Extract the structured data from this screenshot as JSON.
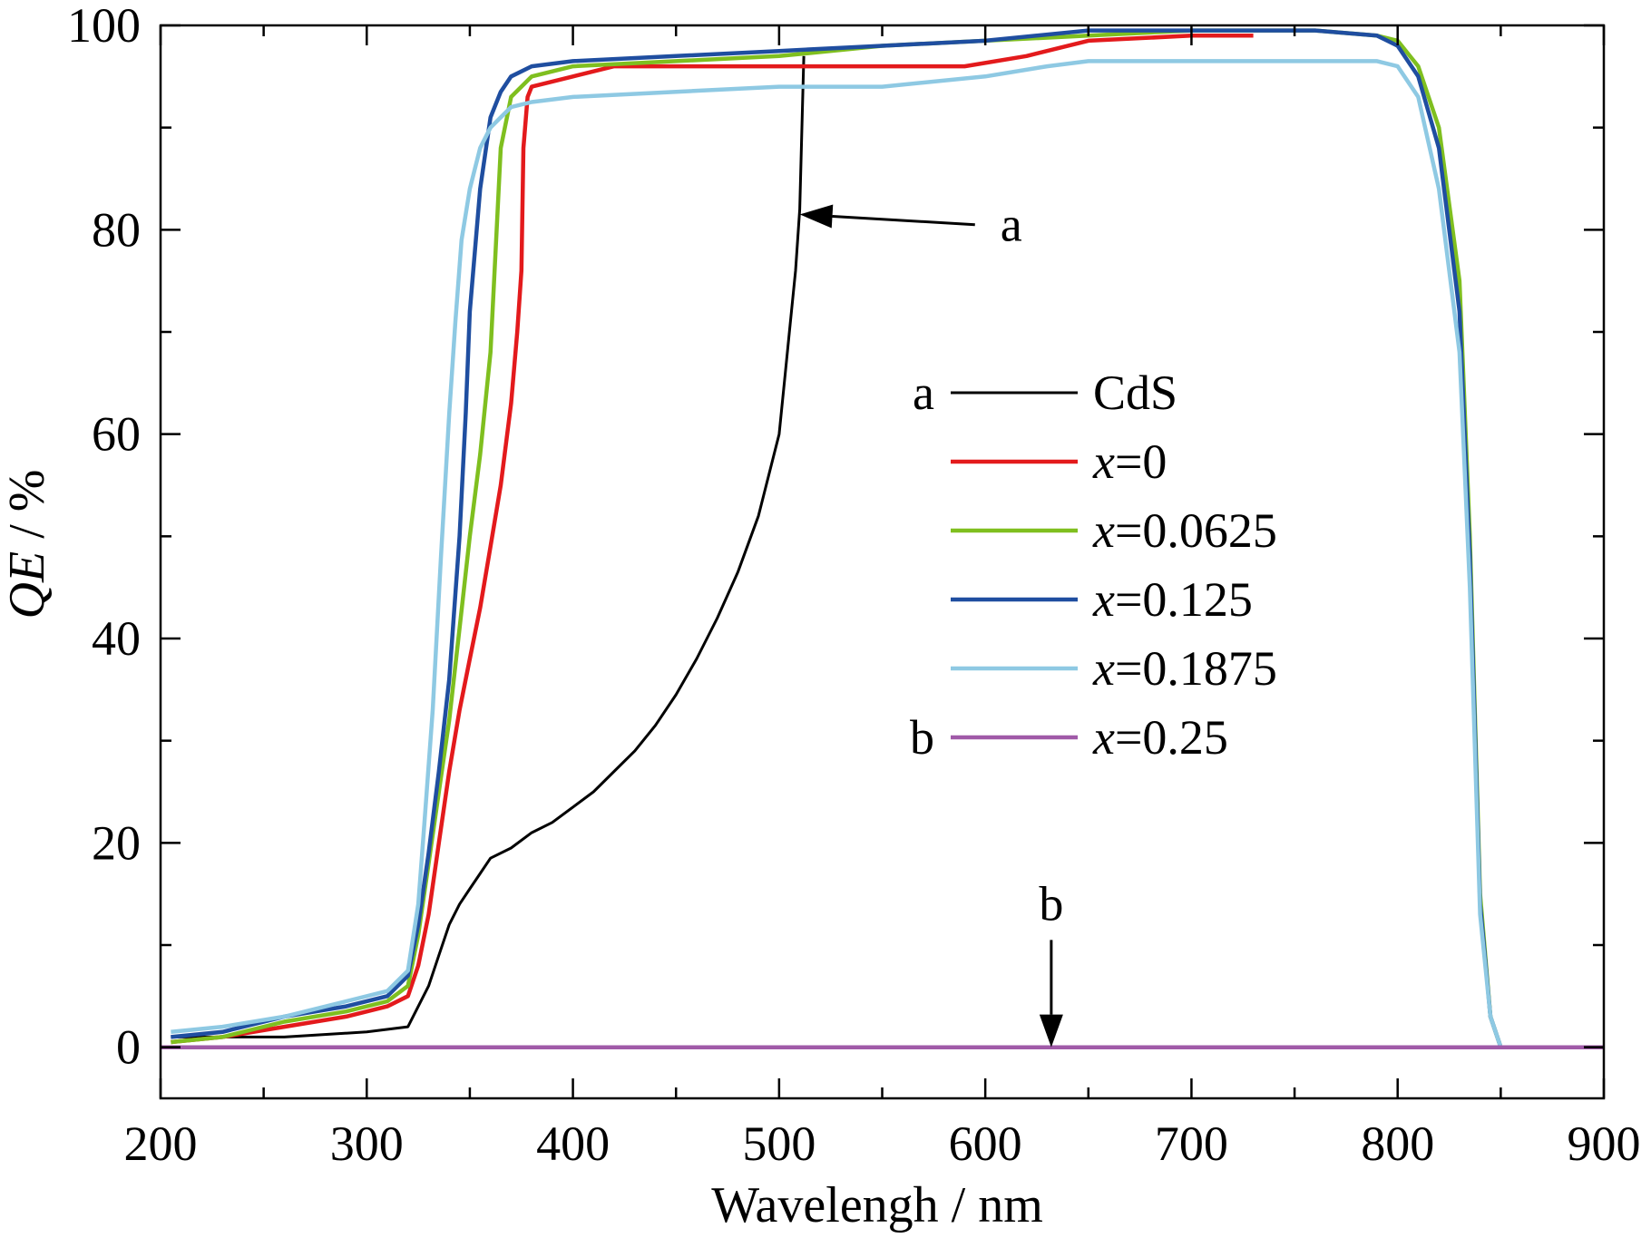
{
  "chart_data": {
    "type": "line",
    "xlabel": "Wavelengh / nm",
    "ylabel": "QE / %",
    "ylabel_italic_part": "QE",
    "ylabel_unit_part": " / %",
    "xlim": [
      200,
      900
    ],
    "ylim": [
      -5,
      100
    ],
    "x_ticks": [
      200,
      300,
      400,
      500,
      600,
      700,
      800,
      900
    ],
    "y_ticks": [
      0,
      20,
      40,
      60,
      80,
      100
    ],
    "x_minor_step": 50,
    "y_minor_step": 10,
    "grid": false,
    "legend_position": "center-right",
    "series": [
      {
        "key": "cds",
        "name": "CdS",
        "legend_marker": "a",
        "color": "#000000",
        "x": [
          205,
          260,
          300,
          320,
          325,
          330,
          335,
          340,
          345,
          350,
          355,
          360,
          370,
          380,
          390,
          400,
          410,
          420,
          430,
          440,
          450,
          460,
          470,
          480,
          490,
          500,
          503,
          505,
          508,
          510,
          512
        ],
        "y": [
          1,
          1,
          1.5,
          2,
          4,
          6,
          9,
          12,
          14,
          15.5,
          17,
          18.5,
          19.5,
          21,
          22,
          23.5,
          25,
          27,
          29,
          31.5,
          34.5,
          38,
          42,
          46.5,
          52,
          60,
          66,
          70,
          76,
          82,
          97
        ]
      },
      {
        "key": "x0",
        "name_prefix": "x",
        "name_suffix": "=0",
        "color": "#e31a1c",
        "x": [
          205,
          230,
          260,
          290,
          310,
          320,
          325,
          330,
          335,
          340,
          345,
          350,
          355,
          360,
          365,
          370,
          373,
          375,
          376,
          378,
          380,
          400,
          420,
          450,
          500,
          560,
          590,
          620,
          650,
          700,
          730
        ],
        "y": [
          0.5,
          1,
          2,
          3,
          4,
          5,
          8,
          13,
          20,
          27,
          33,
          38,
          43,
          49,
          55,
          63,
          70,
          76,
          88,
          93,
          94,
          95,
          96,
          96,
          96,
          96,
          96,
          97,
          98.5,
          99,
          99
        ]
      },
      {
        "key": "x0625",
        "name_prefix": "x",
        "name_suffix": "=0.0625",
        "color": "#7fbf1f",
        "x": [
          205,
          230,
          260,
          290,
          310,
          320,
          325,
          330,
          335,
          340,
          345,
          350,
          355,
          360,
          363,
          365,
          370,
          380,
          400,
          450,
          500,
          550,
          600,
          650,
          700,
          760,
          790,
          800,
          810,
          820,
          830,
          835,
          840,
          845,
          850,
          855,
          860
        ],
        "y": [
          0.5,
          1,
          2.5,
          3.5,
          4.5,
          6,
          11,
          18,
          25,
          32,
          41,
          50,
          58,
          68,
          80,
          88,
          93,
          95,
          96,
          96.5,
          97,
          98,
          98.5,
          99,
          99.5,
          99.5,
          99,
          98.5,
          96,
          90,
          75,
          50,
          15,
          3,
          0,
          0,
          0
        ]
      },
      {
        "key": "x125",
        "name_prefix": "x",
        "name_suffix": "=0.125",
        "color": "#1f4ea0",
        "x": [
          205,
          230,
          260,
          290,
          310,
          320,
          325,
          330,
          335,
          340,
          345,
          348,
          350,
          355,
          360,
          365,
          370,
          380,
          400,
          450,
          500,
          550,
          600,
          650,
          700,
          760,
          790,
          800,
          810,
          820,
          830,
          835,
          840,
          845,
          850,
          855,
          860
        ],
        "y": [
          1,
          1.5,
          3,
          4,
          5,
          7,
          12,
          19,
          27,
          36,
          50,
          62,
          72,
          84,
          91,
          93.5,
          95,
          96,
          96.5,
          97,
          97.5,
          98,
          98.5,
          99.5,
          99.5,
          99.5,
          99,
          98,
          95,
          88,
          72,
          48,
          14,
          3,
          0,
          0,
          0
        ]
      },
      {
        "key": "x1875",
        "name_prefix": "x",
        "name_suffix": "=0.1875",
        "color": "#8ec9e3",
        "x": [
          205,
          230,
          260,
          290,
          310,
          320,
          325,
          328,
          332,
          336,
          340,
          343,
          346,
          350,
          355,
          360,
          365,
          370,
          380,
          400,
          450,
          500,
          550,
          600,
          630,
          650,
          700,
          760,
          790,
          800,
          810,
          820,
          830,
          835,
          840,
          845,
          850,
          855,
          860,
          900
        ],
        "y": [
          1.5,
          2,
          3,
          4.5,
          5.5,
          7.5,
          14,
          22,
          33,
          48,
          62,
          71,
          79,
          84,
          88,
          90,
          91,
          92,
          92.5,
          93,
          93.5,
          94,
          94,
          95,
          96,
          96.5,
          96.5,
          96.5,
          96.5,
          96,
          93,
          84,
          68,
          45,
          13,
          3,
          0,
          0,
          0,
          0
        ]
      },
      {
        "key": "x25",
        "name_prefix": "x",
        "name_suffix": "=0.25",
        "legend_marker": "b",
        "color": "#a05aa8",
        "x": [
          200,
          900
        ],
        "y": [
          0,
          0
        ]
      }
    ],
    "annotations": [
      {
        "label": "a",
        "from": [
          595,
          80.5
        ],
        "to": [
          510,
          81.5
        ]
      },
      {
        "label": "b",
        "from": [
          632,
          10.5
        ],
        "to": [
          632,
          0
        ]
      }
    ]
  }
}
